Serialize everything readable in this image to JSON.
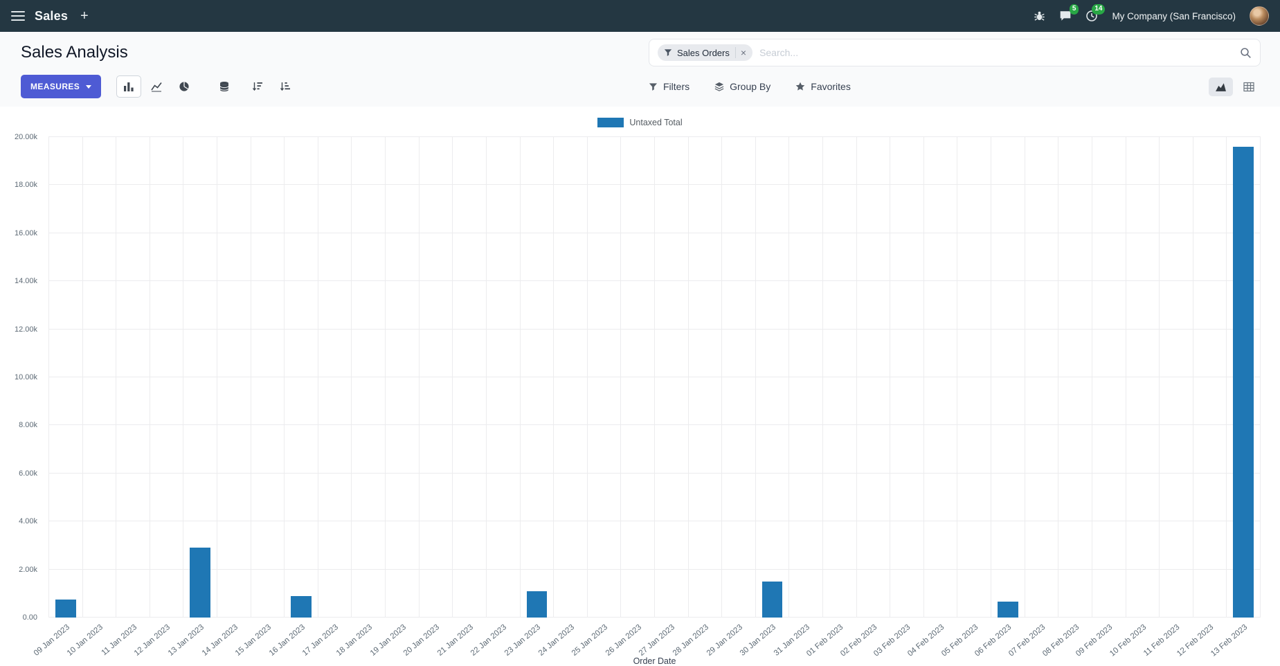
{
  "colors": {
    "navbar_bg": "#243742",
    "primary": "#4e5bd4",
    "badge_green": "#28a745",
    "bar": "#1f77b4"
  },
  "navbar": {
    "app_name": "Sales",
    "plus_label": "+",
    "message_badge": "5",
    "activity_badge": "14",
    "company": "My Company (San Francisco)"
  },
  "control_panel": {
    "title": "Sales Analysis",
    "search": {
      "facet_label": "Sales Orders",
      "facet_remove": "×",
      "placeholder": "Search..."
    },
    "measures_label": "MEASURES",
    "filters_label": "Filters",
    "group_by_label": "Group By",
    "favorites_label": "Favorites"
  },
  "chart_data": {
    "type": "bar",
    "title": "",
    "legend": "Untaxed Total",
    "xlabel": "Order Date",
    "ylabel": "",
    "ylim": [
      0,
      20000
    ],
    "grid": true,
    "legend_position": "top-center",
    "bar_color": "#1f77b4",
    "y_ticks": [
      "0.00",
      "2.00k",
      "4.00k",
      "6.00k",
      "8.00k",
      "10.00k",
      "12.00k",
      "14.00k",
      "16.00k",
      "18.00k",
      "20.00k"
    ],
    "categories": [
      "09 Jan 2023",
      "10 Jan 2023",
      "11 Jan 2023",
      "12 Jan 2023",
      "13 Jan 2023",
      "14 Jan 2023",
      "15 Jan 2023",
      "16 Jan 2023",
      "17 Jan 2023",
      "18 Jan 2023",
      "19 Jan 2023",
      "20 Jan 2023",
      "21 Jan 2023",
      "22 Jan 2023",
      "23 Jan 2023",
      "24 Jan 2023",
      "25 Jan 2023",
      "26 Jan 2023",
      "27 Jan 2023",
      "28 Jan 2023",
      "29 Jan 2023",
      "30 Jan 2023",
      "31 Jan 2023",
      "01 Feb 2023",
      "02 Feb 2023",
      "03 Feb 2023",
      "04 Feb 2023",
      "05 Feb 2023",
      "06 Feb 2023",
      "07 Feb 2023",
      "08 Feb 2023",
      "09 Feb 2023",
      "10 Feb 2023",
      "11 Feb 2023",
      "12 Feb 2023",
      "13 Feb 2023"
    ],
    "values": [
      750,
      0,
      0,
      0,
      2900,
      0,
      0,
      900,
      0,
      0,
      0,
      0,
      0,
      0,
      1100,
      0,
      0,
      0,
      0,
      0,
      0,
      1500,
      0,
      0,
      0,
      0,
      0,
      0,
      650,
      0,
      0,
      0,
      0,
      0,
      0,
      19600
    ]
  }
}
